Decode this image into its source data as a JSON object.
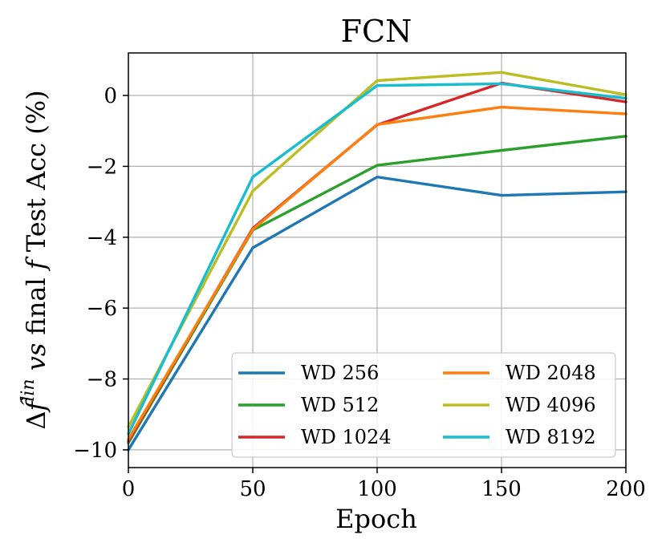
{
  "chart_data": {
    "type": "line",
    "title": "FCN",
    "xlabel": "Epoch",
    "ylabel_parts": {
      "delta": "Δ",
      "f_hat": "f̂",
      "sup": "lin",
      "vs": " vs ",
      "final": " final ",
      "f": "f",
      "rest": " Test Acc (%)"
    },
    "xlim": [
      0,
      200
    ],
    "ylim": [
      -10.5,
      1.2
    ],
    "xticks": [
      0,
      50,
      100,
      150,
      200
    ],
    "yticks": [
      -10,
      -8,
      -6,
      -4,
      -2,
      0
    ],
    "xtick_labels": [
      "0",
      "50",
      "100",
      "150",
      "200"
    ],
    "ytick_labels": [
      "−10",
      "−8",
      "−6",
      "−4",
      "−2",
      "0"
    ],
    "grid": true,
    "legend_placement": "lower-right",
    "legend_columns": 2,
    "x": [
      0,
      50,
      100,
      150,
      200
    ],
    "series": [
      {
        "name": "WD 256",
        "color": "#1f77b4",
        "values": [
          -10.0,
          -4.3,
          -2.3,
          -2.82,
          -2.72
        ]
      },
      {
        "name": "WD 512",
        "color": "#2ca02c",
        "values": [
          -9.8,
          -3.8,
          -1.97,
          -1.55,
          -1.15
        ]
      },
      {
        "name": "WD 1024",
        "color": "#d62728",
        "values": [
          -9.75,
          -3.75,
          -0.83,
          0.35,
          -0.18
        ]
      },
      {
        "name": "WD 2048",
        "color": "#ff7f0e",
        "values": [
          -9.7,
          -3.78,
          -0.82,
          -0.33,
          -0.52
        ]
      },
      {
        "name": "WD 4096",
        "color": "#bcbd22",
        "values": [
          -9.35,
          -2.7,
          0.42,
          0.65,
          0.02
        ]
      },
      {
        "name": "WD 8192",
        "color": "#17becf",
        "values": [
          -9.55,
          -2.3,
          0.28,
          0.33,
          -0.08
        ]
      }
    ]
  }
}
